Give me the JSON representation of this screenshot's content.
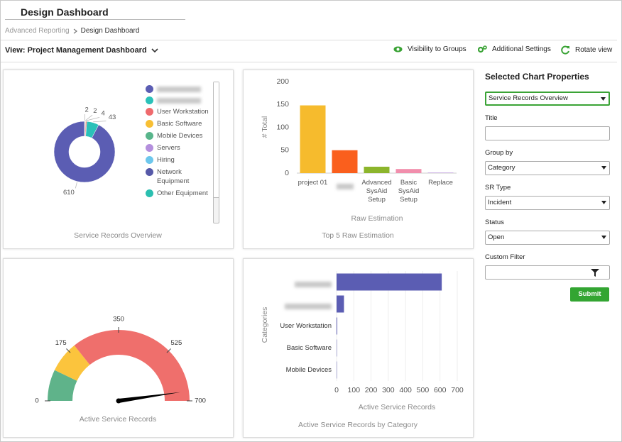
{
  "header": {
    "title": "Design Dashboard",
    "breadcrumb": [
      "Advanced Reporting",
      "Design Dashboard"
    ]
  },
  "toolbar": {
    "view": "View: Project Management Dashboard",
    "actions": [
      "Visibility to Groups",
      "Additional Settings",
      "Rotate view"
    ]
  },
  "chart_data": [
    {
      "type": "pie",
      "title": "Service Records Overview",
      "categories": [
        null,
        null,
        "User Workstation",
        "Basic Software",
        "Mobile Devices",
        "Servers",
        "Hiring",
        "Network Equipment",
        "Other Equipment"
      ],
      "values": [
        610,
        43,
        4,
        2,
        2,
        null,
        null,
        null,
        null
      ],
      "colors": [
        "#5b5db3",
        "#2bc1b9",
        "#ef6a6d",
        "#f8bf34",
        "#58b58b",
        "#b48fdd",
        "#6dc7ec",
        "#5659a8",
        "#2bbfb0"
      ]
    },
    {
      "type": "bar",
      "title": "Top 5 Raw Estimation",
      "x_label": "Raw Estimation",
      "y_label": "# Total",
      "categories": [
        "project 01",
        null,
        "Advanced SysAid Setup",
        "Basic SysAid Setup",
        "Replace"
      ],
      "values": [
        148,
        50,
        14,
        9,
        1
      ],
      "colors": [
        "#f6bb2d",
        "#fa5f1d",
        "#8cb52c",
        "#f18eac",
        "#b28fd9"
      ],
      "ylim": [
        0,
        200
      ],
      "yticks": [
        0,
        50,
        100,
        150,
        200
      ],
      "grid": false
    },
    {
      "type": "gauge",
      "title": "Active Service Records",
      "value": 669,
      "needle_color": "#000000",
      "ylim": [
        0,
        700
      ],
      "yticks": [
        0,
        175,
        350,
        525,
        700
      ],
      "bands": [
        {
          "from": 0,
          "to": 100,
          "color": "#5fb38a"
        },
        {
          "from": 100,
          "to": 200,
          "color": "#fbc43d"
        },
        {
          "from": 200,
          "to": 700,
          "color": "#ef6f6c"
        }
      ]
    },
    {
      "type": "hbar",
      "title": "Active Service Records by Category",
      "x_label": "Active Service Records",
      "y_label": "Categories",
      "categories": [
        null,
        null,
        "User Workstation",
        "Basic Software",
        "Mobile Devices"
      ],
      "values": [
        610,
        43,
        4,
        2,
        2
      ],
      "color": "#5b5db3",
      "xlim": [
        0,
        700
      ],
      "xticks": [
        0,
        100,
        200,
        300,
        400,
        500,
        600,
        700
      ],
      "grid": true
    }
  ],
  "properties": {
    "title": "Selected Chart Properties",
    "chart_select": "Service Records Overview",
    "fields": [
      {
        "label": "Title"
      },
      {
        "label": "Group by",
        "value": "Category"
      },
      {
        "label": "SR Type",
        "value": "Incident"
      },
      {
        "label": "Status",
        "value": "Open"
      },
      {
        "label": "Custom Filter"
      }
    ],
    "submit": "Submit"
  }
}
